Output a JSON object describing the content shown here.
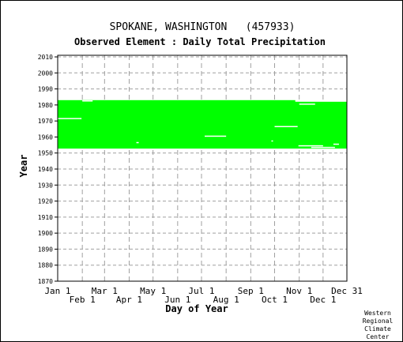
{
  "chart_data": {
    "type": "heatmap",
    "title": "SPOKANE, WASHINGTON   (457933)",
    "subtitle": "Observed Element : Daily Total Precipitation",
    "xlabel": "Day of Year",
    "ylabel": "Year",
    "x_ticks_upper": [
      {
        "label": "Jan 1",
        "day": 1
      },
      {
        "label": "Mar 1",
        "day": 60
      },
      {
        "label": "May 1",
        "day": 121
      },
      {
        "label": "Jul 1",
        "day": 182
      },
      {
        "label": "Sep 1",
        "day": 244
      },
      {
        "label": "Nov 1",
        "day": 305
      },
      {
        "label": "Dec 31",
        "day": 365
      }
    ],
    "x_ticks_lower": [
      {
        "label": "Feb 1",
        "day": 32
      },
      {
        "label": "Apr 1",
        "day": 91
      },
      {
        "label": "Jun 1",
        "day": 152
      },
      {
        "label": "Aug 1",
        "day": 213
      },
      {
        "label": "Oct 1",
        "day": 274
      },
      {
        "label": "Dec 1",
        "day": 335
      }
    ],
    "xlim": [
      1,
      365
    ],
    "ylim": [
      1870,
      2011
    ],
    "y_tick_values": [
      1870,
      1880,
      1890,
      1900,
      1910,
      1920,
      1930,
      1940,
      1950,
      1960,
      1970,
      1980,
      1990,
      2000,
      2010
    ],
    "grid": true,
    "series_color": "#00ff00",
    "record": {
      "start_year": 1953,
      "end_year": 1982,
      "through_day_in_last_year": 300
    },
    "missing_segments": [
      {
        "year": 1971,
        "day_start": 1,
        "day_end": 31
      },
      {
        "year": 1982,
        "day_start": 32,
        "day_end": 45
      },
      {
        "year": 1960,
        "day_start": 186,
        "day_end": 213
      },
      {
        "year": 1966,
        "day_start": 274,
        "day_end": 303
      },
      {
        "year": 1954,
        "day_start": 304,
        "day_end": 335
      },
      {
        "year": 1953,
        "day_start": 320,
        "day_end": 350
      },
      {
        "year": 1980,
        "day_start": 305,
        "day_end": 325
      },
      {
        "year": 1955,
        "day_start": 348,
        "day_end": 355
      },
      {
        "year": 1956,
        "day_start": 100,
        "day_end": 103
      },
      {
        "year": 1957,
        "day_start": 270,
        "day_end": 272
      }
    ]
  },
  "credit": [
    "Western",
    "Regional",
    "Climate",
    "Center"
  ]
}
